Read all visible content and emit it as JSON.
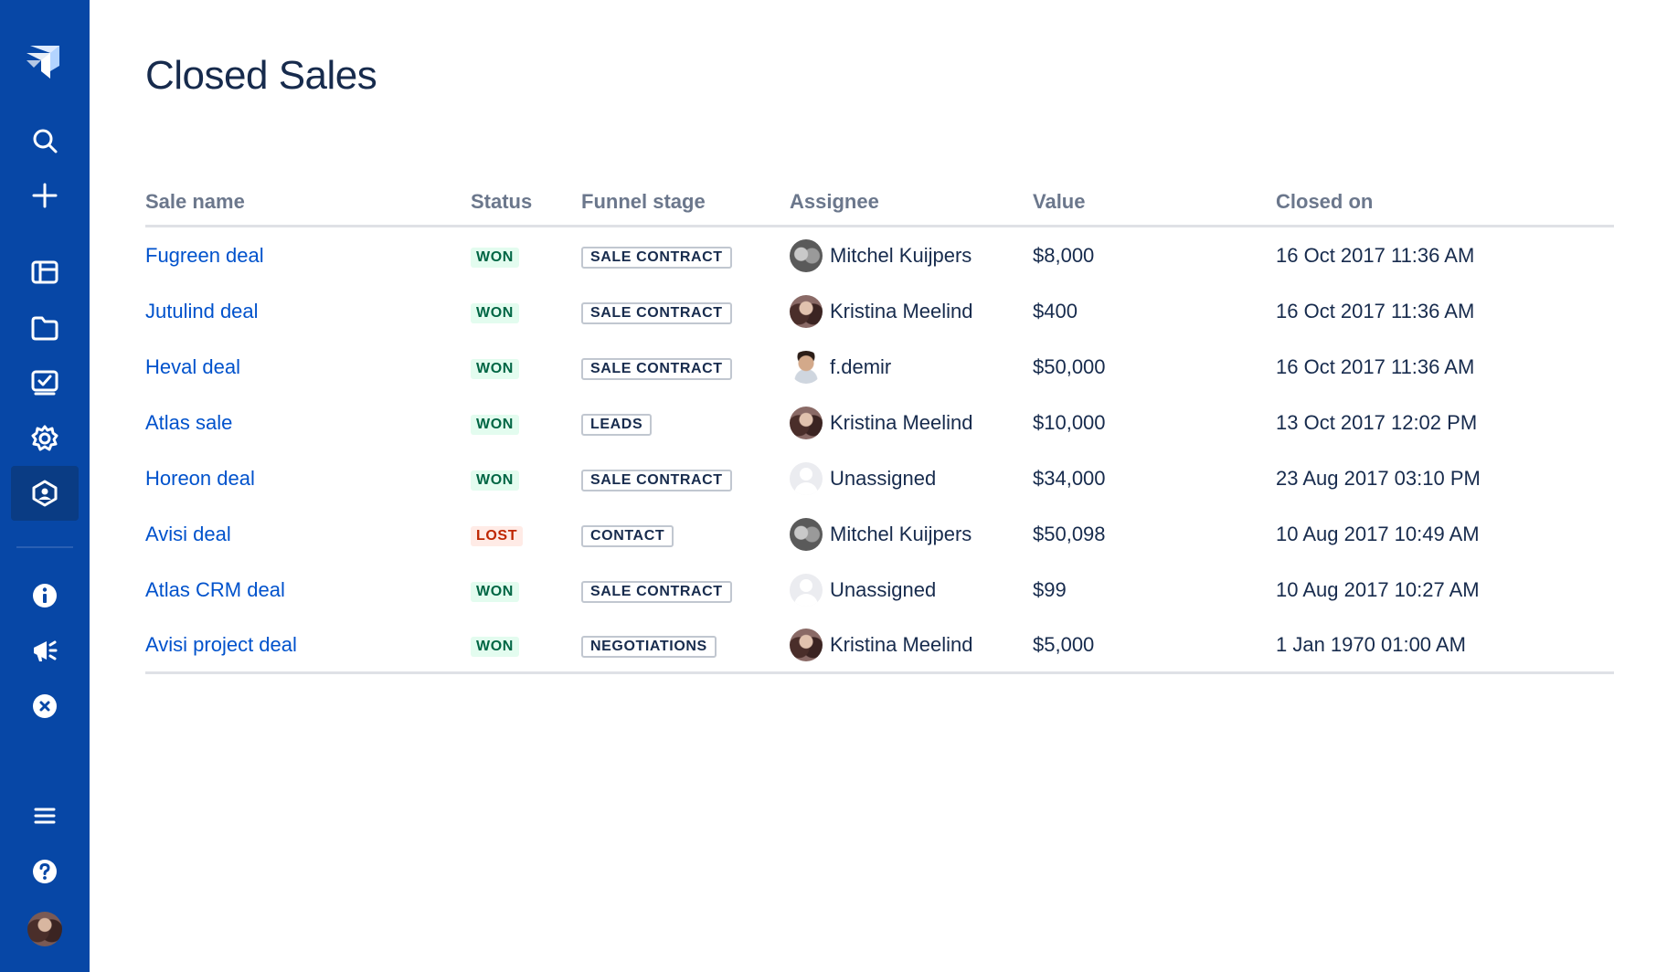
{
  "sidebar": {
    "icons": [
      "jira-logo-icon",
      "search-icon",
      "plus-icon",
      "board-icon",
      "folder-icon",
      "dashboard-icon",
      "gear-icon",
      "app-icon",
      "info-icon",
      "megaphone-icon",
      "close-circle-icon",
      "menu-icon",
      "help-icon",
      "avatar"
    ]
  },
  "page": {
    "title": "Closed Sales"
  },
  "table": {
    "headers": [
      "Sale name",
      "Status",
      "Funnel stage",
      "Assignee",
      "Value",
      "Closed on"
    ],
    "rows": [
      {
        "name": "Fugreen deal",
        "status": "WON",
        "stage": "SALE CONTRACT",
        "assignee": "Mitchel Kuijpers",
        "avatar": "mitchel",
        "value": "$8,000",
        "closed": "16 Oct 2017 11:36 AM"
      },
      {
        "name": "Jutulind deal",
        "status": "WON",
        "stage": "SALE CONTRACT",
        "assignee": "Kristina Meelind",
        "avatar": "kristina",
        "value": "$400",
        "closed": "16 Oct 2017 11:36 AM"
      },
      {
        "name": "Heval deal",
        "status": "WON",
        "stage": "SALE CONTRACT",
        "assignee": "f.demir",
        "avatar": "demir",
        "value": "$50,000",
        "closed": "16 Oct 2017 11:36 AM"
      },
      {
        "name": "Atlas sale",
        "status": "WON",
        "stage": "LEADS",
        "assignee": "Kristina Meelind",
        "avatar": "kristina",
        "value": "$10,000",
        "closed": "13 Oct 2017 12:02 PM"
      },
      {
        "name": "Horeon deal",
        "status": "WON",
        "stage": "SALE CONTRACT",
        "assignee": "Unassigned",
        "avatar": "unassigned",
        "value": "$34,000",
        "closed": "23 Aug 2017 03:10 PM"
      },
      {
        "name": "Avisi deal",
        "status": "LOST",
        "stage": "CONTACT",
        "assignee": "Mitchel Kuijpers",
        "avatar": "mitchel",
        "value": "$50,098",
        "closed": "10 Aug 2017 10:49 AM"
      },
      {
        "name": "Atlas CRM deal",
        "status": "WON",
        "stage": "SALE CONTRACT",
        "assignee": "Unassigned",
        "avatar": "unassigned",
        "value": "$99",
        "closed": "10 Aug 2017 10:27 AM"
      },
      {
        "name": "Avisi project deal",
        "status": "WON",
        "stage": "NEGOTIATIONS",
        "assignee": "Kristina Meelind",
        "avatar": "kristina",
        "value": "$5,000",
        "closed": "1 Jan 1970 01:00 AM"
      }
    ]
  },
  "colors": {
    "sidebar": "#0747A6",
    "link": "#0052CC",
    "won": "#006644",
    "lost": "#BF2600"
  }
}
